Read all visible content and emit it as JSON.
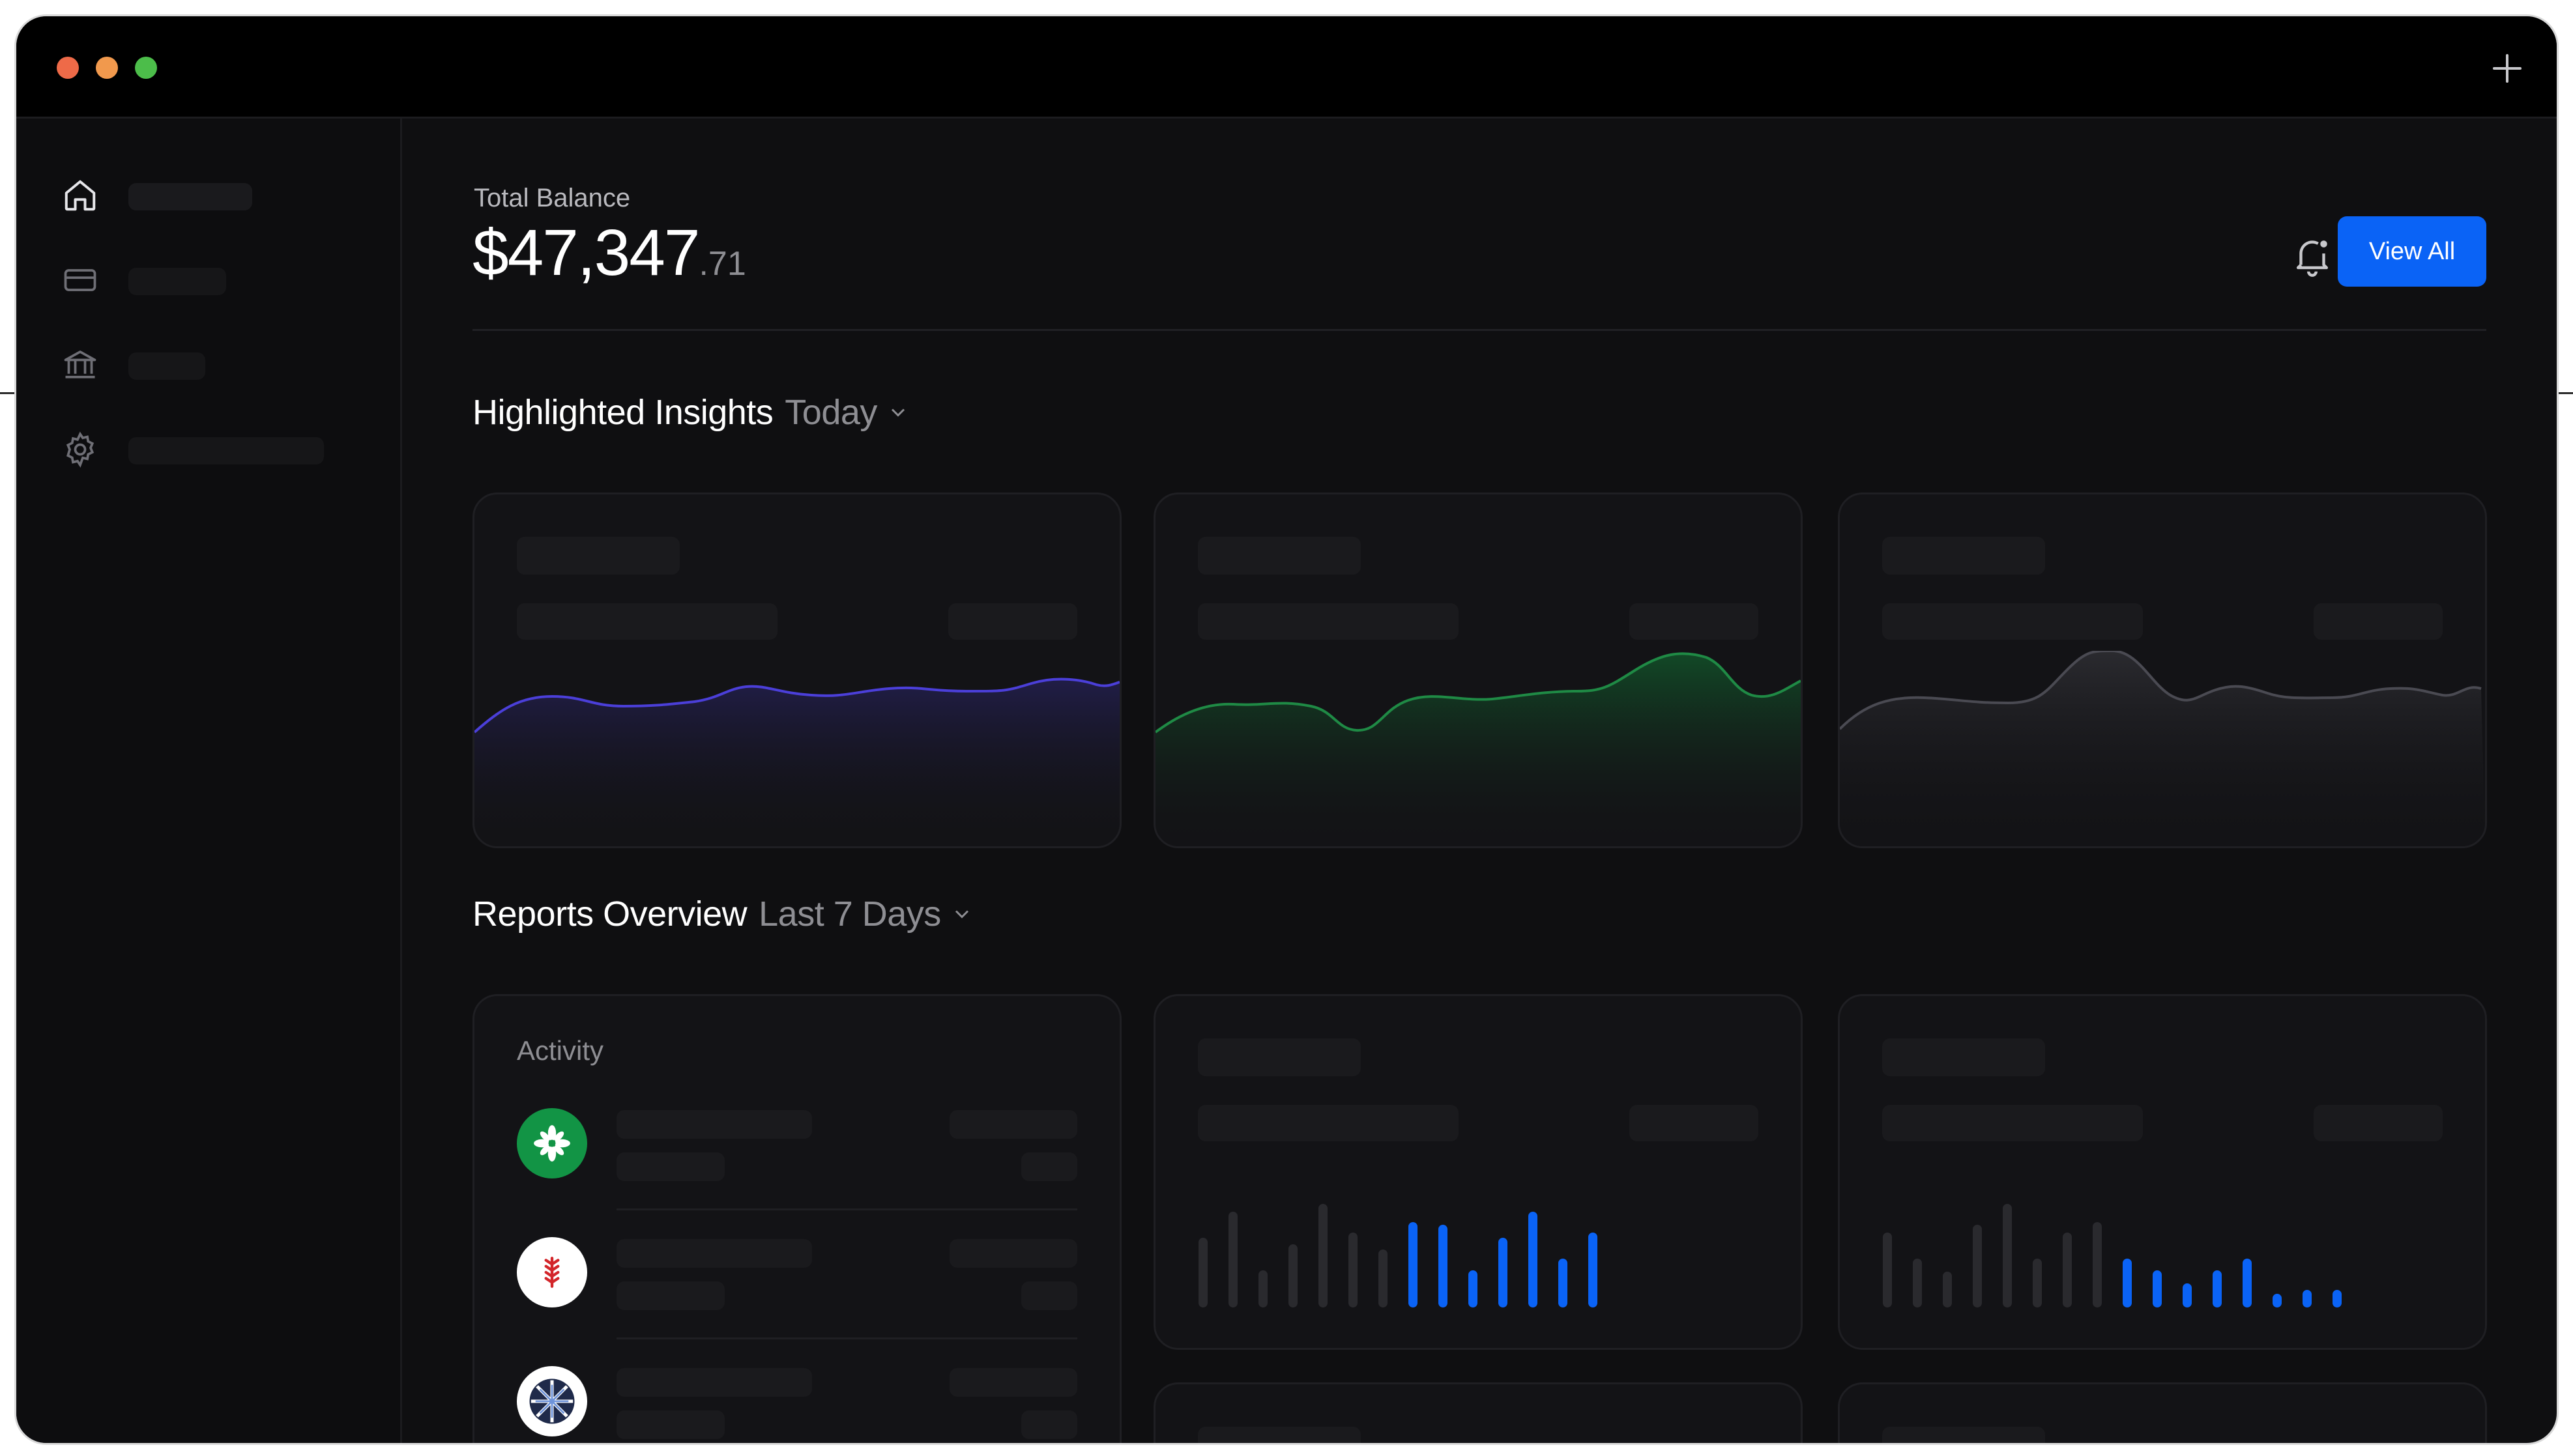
{
  "header": {
    "total_label": "Total Balance",
    "balance_main": "$47,347",
    "balance_cents": ".71",
    "view_all_label": "View All"
  },
  "insights": {
    "title": "Highlighted Insights",
    "period": "Today"
  },
  "reports": {
    "title": "Reports Overview",
    "period": "Last 7 Days"
  },
  "activity": {
    "title": "Activity"
  },
  "sidebar": {
    "items": [
      {
        "icon": "home-icon"
      },
      {
        "icon": "card-icon"
      },
      {
        "icon": "bank-icon"
      },
      {
        "icon": "gear-icon"
      }
    ]
  },
  "colors": {
    "accent": "#0a63f6",
    "purple_chart": "#4b3fd9",
    "green_chart": "#1f8a45",
    "gray_chart": "#4a4a52",
    "window_dots": [
      "#ee6a48",
      "#f1994d",
      "#4cbd4a"
    ]
  }
}
